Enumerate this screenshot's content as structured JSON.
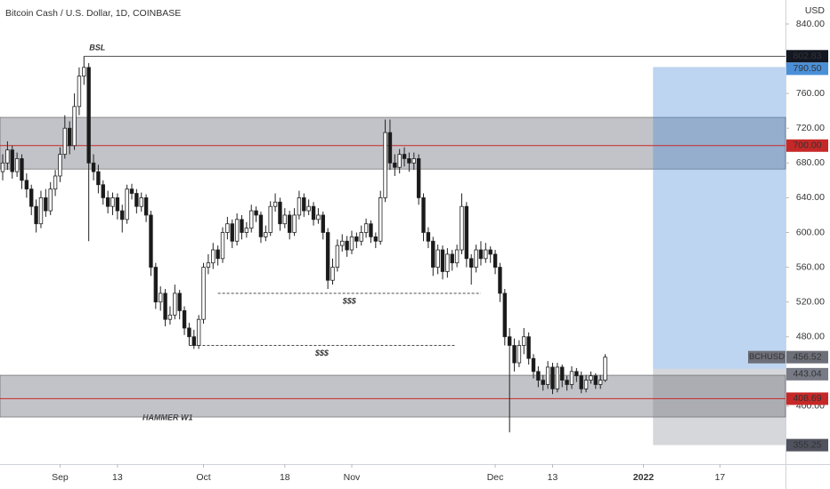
{
  "chart_data": {
    "type": "candlestick",
    "title": "Bitcoin Cash / U.S. Dollar, 1D, COINBASE",
    "currency": "USD",
    "symbol": "BCHUSD",
    "open": [
      670,
      680,
      695,
      670,
      685,
      660,
      650,
      630,
      610,
      640,
      625,
      650,
      665,
      690,
      720,
      700,
      745,
      780,
      790,
      680,
      670,
      655,
      640,
      630,
      640,
      625,
      615,
      650,
      645,
      630,
      640,
      620,
      560,
      520,
      530,
      500,
      505,
      530,
      510,
      490,
      480,
      470,
      500,
      560,
      565,
      580,
      570,
      600,
      610,
      590,
      615,
      600,
      605,
      625,
      620,
      595,
      600,
      630,
      635,
      610,
      620,
      600,
      620,
      640,
      625,
      630,
      615,
      620,
      600,
      545,
      560,
      585,
      590,
      580,
      595,
      590,
      600,
      610,
      595,
      590,
      640,
      715,
      680,
      675,
      690,
      685,
      680,
      685,
      640,
      600,
      590,
      560,
      580,
      555,
      575,
      565,
      580,
      630,
      570,
      560,
      580,
      570,
      580,
      575,
      560,
      530,
      480,
      470,
      450,
      470,
      480,
      455,
      440,
      430,
      425,
      445,
      420,
      445,
      430,
      425,
      440,
      435,
      420,
      430,
      435,
      425,
      430
    ],
    "high": [
      690,
      705,
      700,
      692,
      690,
      668,
      655,
      638,
      648,
      650,
      658,
      672,
      698,
      735,
      728,
      760,
      790,
      802.83,
      795,
      690,
      678,
      660,
      648,
      646,
      645,
      632,
      655,
      656,
      650,
      646,
      644,
      625,
      565,
      538,
      535,
      515,
      540,
      534,
      515,
      496,
      488,
      505,
      565,
      575,
      588,
      585,
      606,
      618,
      615,
      622,
      620,
      612,
      632,
      630,
      624,
      608,
      636,
      645,
      640,
      628,
      625,
      628,
      648,
      645,
      638,
      635,
      628,
      624,
      605,
      570,
      592,
      598,
      596,
      602,
      600,
      608,
      616,
      614,
      600,
      648,
      730,
      730,
      690,
      696,
      698,
      692,
      692,
      690,
      645,
      606,
      595,
      586,
      585,
      582,
      580,
      586,
      645,
      635,
      575,
      586,
      590,
      588,
      584,
      580,
      565,
      535,
      490,
      478,
      476,
      490,
      485,
      460,
      446,
      436,
      452,
      450,
      450,
      448,
      435,
      446,
      444,
      440,
      436,
      440,
      438,
      436,
      460
    ],
    "low": [
      660,
      672,
      662,
      664,
      650,
      640,
      620,
      600,
      605,
      618,
      620,
      642,
      658,
      685,
      690,
      695,
      735,
      770,
      590,
      660,
      645,
      632,
      622,
      620,
      615,
      600,
      610,
      638,
      622,
      624,
      612,
      550,
      512,
      510,
      492,
      494,
      500,
      500,
      482,
      470,
      466,
      466,
      495,
      552,
      558,
      562,
      565,
      592,
      582,
      585,
      592,
      594,
      600,
      612,
      588,
      590,
      596,
      624,
      602,
      605,
      592,
      596,
      615,
      618,
      620,
      608,
      610,
      592,
      535,
      540,
      555,
      578,
      572,
      575,
      582,
      585,
      594,
      588,
      582,
      586,
      635,
      672,
      665,
      668,
      676,
      670,
      672,
      632,
      590,
      582,
      550,
      552,
      546,
      548,
      556,
      560,
      575,
      560,
      540,
      554,
      562,
      565,
      565,
      552,
      520,
      470,
      370,
      440,
      445,
      460,
      448,
      432,
      422,
      418,
      420,
      414,
      416,
      422,
      418,
      420,
      428,
      415,
      416,
      426,
      420,
      420,
      428
    ],
    "close": [
      680,
      695,
      670,
      685,
      660,
      650,
      630,
      610,
      640,
      625,
      650,
      665,
      690,
      720,
      700,
      745,
      780,
      790,
      680,
      670,
      655,
      640,
      630,
      640,
      625,
      615,
      650,
      645,
      630,
      640,
      620,
      560,
      520,
      530,
      500,
      505,
      530,
      510,
      490,
      480,
      470,
      500,
      560,
      565,
      580,
      570,
      600,
      610,
      590,
      615,
      600,
      605,
      625,
      620,
      595,
      600,
      630,
      635,
      610,
      620,
      600,
      620,
      640,
      625,
      630,
      615,
      620,
      600,
      545,
      560,
      585,
      590,
      580,
      595,
      590,
      600,
      610,
      595,
      590,
      640,
      715,
      680,
      675,
      690,
      685,
      680,
      685,
      640,
      600,
      590,
      560,
      580,
      555,
      575,
      565,
      580,
      630,
      570,
      560,
      580,
      570,
      580,
      575,
      560,
      530,
      480,
      470,
      450,
      470,
      480,
      455,
      440,
      430,
      425,
      445,
      420,
      445,
      430,
      425,
      440,
      435,
      420,
      430,
      435,
      425,
      430,
      456.52
    ],
    "xlim": [
      -0.56,
      163.7
    ],
    "xticks": [
      {
        "value": 12,
        "label": "Sep"
      },
      {
        "value": 24,
        "label": "13"
      },
      {
        "value": 42,
        "label": "Oct"
      },
      {
        "value": 59,
        "label": "18"
      },
      {
        "value": 73,
        "label": "Nov"
      },
      {
        "value": 103,
        "label": "Dec"
      },
      {
        "value": 115,
        "label": "13"
      },
      {
        "value": 134,
        "label": "2022"
      },
      {
        "value": 150,
        "label": "17"
      }
    ],
    "ylim": [
      333.4,
      867.6
    ],
    "yticks": [
      {
        "value": 840,
        "label": "840.00"
      },
      {
        "value": 760,
        "label": "760.00"
      },
      {
        "value": 720,
        "label": "720.00"
      },
      {
        "value": 680,
        "label": "680.00"
      },
      {
        "value": 640,
        "label": "640.00"
      },
      {
        "value": 600,
        "label": "600.00"
      },
      {
        "value": 560,
        "label": "560.00"
      },
      {
        "value": 520,
        "label": "520.00"
      },
      {
        "value": 480,
        "label": "480.00"
      },
      {
        "value": 400,
        "label": "400.00"
      }
    ],
    "bsl": {
      "label": "BSL",
      "value": 802.83,
      "value_label": "802.83",
      "x_start": 17
    },
    "lines": [
      {
        "value": 700,
        "label": "700.00",
        "color": "#c62828"
      },
      {
        "value": 408.69,
        "label": "408.69",
        "color": "#c62828"
      }
    ],
    "zones": [
      {
        "from": 673,
        "to": 732.5
      },
      {
        "from": 387.6,
        "to": 435.7
      }
    ],
    "liquidity": [
      {
        "label": "$$$",
        "value": 530,
        "x_start": 45,
        "x_end": 100
      },
      {
        "label": "$$$",
        "value": 470,
        "x_start": 39,
        "x_end": 94.5
      }
    ],
    "annotation": "HAMMER W1",
    "position": {
      "x_start": 136,
      "target": {
        "value": 790.5,
        "label": "790.50"
      },
      "entry": {
        "value": 443.04,
        "label": "443.04"
      },
      "stop": {
        "value": 355.25,
        "label": "355.25"
      }
    },
    "last": {
      "value": 456.52,
      "label": "456.52"
    }
  }
}
